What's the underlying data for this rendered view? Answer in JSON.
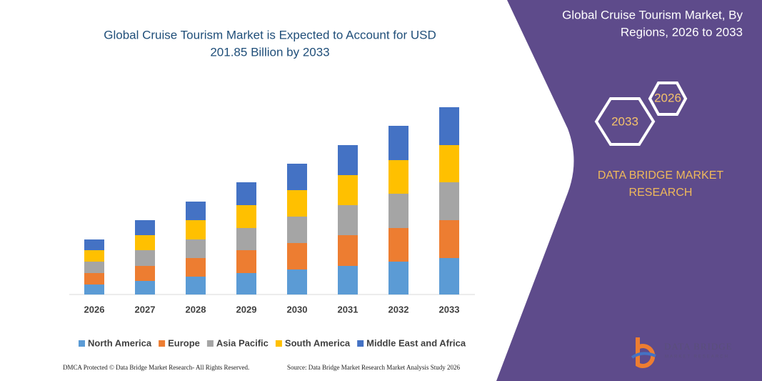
{
  "chart_data": {
    "type": "stacked-bar",
    "title": [
      "Global Cruise Tourism Market is Expected to Account for USD",
      "201.85 Billion by 2033"
    ],
    "categories": [
      "2026",
      "2027",
      "2028",
      "2029",
      "2030",
      "2031",
      "2032",
      "2033"
    ],
    "series": [
      {
        "name": "North America",
        "color": "#5b9bd5",
        "values": [
          14,
          19,
          25,
          30,
          35,
          40,
          46,
          51
        ]
      },
      {
        "name": "Europe",
        "color": "#ed7d31",
        "values": [
          16,
          21,
          26,
          32,
          37,
          43,
          47,
          53
        ]
      },
      {
        "name": "Asia Pacific",
        "color": "#a5a5a5",
        "values": [
          16,
          22,
          26,
          31,
          37,
          42,
          48,
          53
        ]
      },
      {
        "name": "South America",
        "color": "#ffc000",
        "values": [
          16,
          21,
          27,
          32,
          37,
          42,
          47,
          52
        ]
      },
      {
        "name": "Middle East and Africa",
        "color": "#4472c4",
        "values": [
          15,
          21,
          26,
          32,
          37,
          42,
          48,
          53
        ]
      }
    ],
    "ylim": [
      0,
      270
    ]
  },
  "panel": {
    "title": [
      "Global Cruise Tourism Market, By",
      "Regions, 2026 to 2033"
    ],
    "hexagons": [
      "2026",
      "2033"
    ],
    "brand": [
      "DATA BRIDGE MARKET",
      "RESEARCH"
    ]
  },
  "logo": [
    "DATA BRIDGE",
    "MARKET RESEARCH"
  ],
  "footer": {
    "left": "DMCA Protected © Data Bridge Market Research- All Rights Reserved.",
    "right": "Source: Data Bridge Market Research Market Analysis Study 2026"
  }
}
